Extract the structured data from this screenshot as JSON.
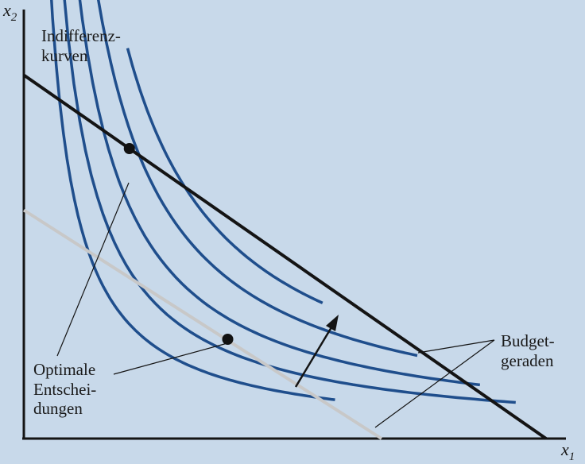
{
  "axes": {
    "x_label": "x",
    "x_subscript": "1",
    "y_label": "x",
    "y_subscript": "2"
  },
  "labels": {
    "indifference_line1": "Indifferenz-",
    "indifference_line2": "kurven",
    "optimal_line1": "Optimale",
    "optimal_line2": "Entschei-",
    "optimal_line3": "dungen",
    "budget_line1": "Budget-",
    "budget_line2": "geraden"
  },
  "colors": {
    "background": "#c8d9ea",
    "curve": "#1f4e8c",
    "budget_new": "#141414",
    "budget_old": "#c8c8c8",
    "axis": "#141414"
  },
  "curves": [
    {
      "k": 0.34
    },
    {
      "k": 0.5
    },
    {
      "k": 0.69
    },
    {
      "k": 0.92
    },
    {
      "k": 1.14
    }
  ],
  "budget_lines": [
    {
      "x_intercept": 2.0,
      "y_intercept": 1.15,
      "style": "old"
    },
    {
      "x_intercept": 2.92,
      "y_intercept": 1.83,
      "style": "new"
    }
  ],
  "optimal_points": [
    {
      "x": 1.14,
      "y": 0.5
    },
    {
      "x": 0.59,
      "y": 1.46
    }
  ]
}
